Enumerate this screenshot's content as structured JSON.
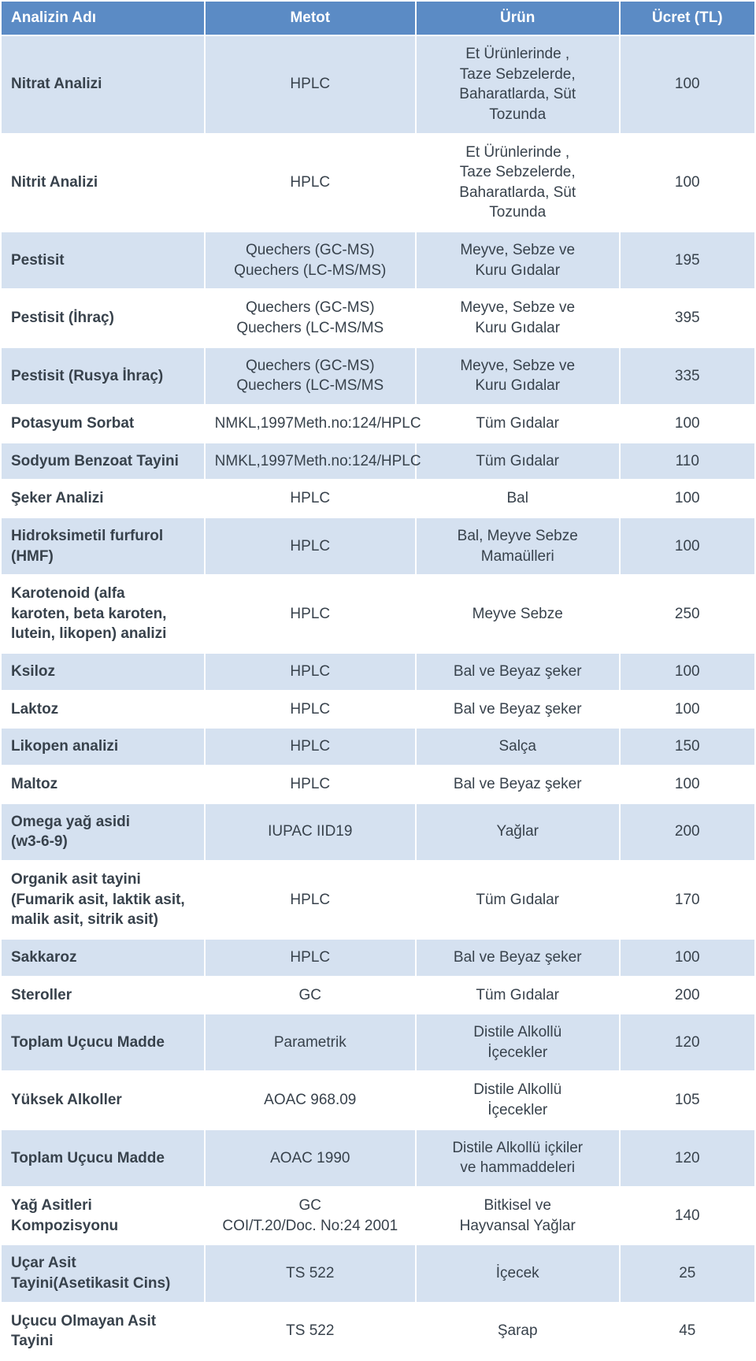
{
  "table": {
    "header_bg": "#5b8bc5",
    "row_alt_bg": "#d5e1f0",
    "row_bg": "#ffffff",
    "text_color": "#38424c",
    "header_text_color": "#ffffff",
    "columns": [
      {
        "key": "name",
        "label": "Analizin Adı",
        "align": "left"
      },
      {
        "key": "method",
        "label": "Metot",
        "align": "center"
      },
      {
        "key": "product",
        "label": "Ürün",
        "align": "center"
      },
      {
        "key": "price",
        "label": "Ücret (TL)",
        "align": "center"
      }
    ],
    "rows": [
      {
        "name": "Nitrat Analizi",
        "method": "HPLC",
        "product": "Et Ürünlerinde ,\nTaze Sebzelerde,\nBaharatlarda, Süt\nTozunda",
        "price": "100",
        "alt": true
      },
      {
        "name": "Nitrit Analizi",
        "method": "HPLC",
        "product": "Et Ürünlerinde ,\nTaze Sebzelerde,\nBaharatlarda, Süt\nTozunda",
        "price": "100",
        "alt": false
      },
      {
        "name": "Pestisit",
        "method": "Quechers (GC-MS)\nQuechers (LC-MS/MS)",
        "product": "Meyve, Sebze ve\nKuru Gıdalar",
        "price": "195",
        "alt": true
      },
      {
        "name": "Pestisit (İhraç)",
        "method": "Quechers (GC-MS)\nQuechers (LC-MS/MS",
        "product": "Meyve, Sebze ve\nKuru Gıdalar",
        "price": "395",
        "alt": false
      },
      {
        "name": "Pestisit (Rusya İhraç)",
        "method": "Quechers (GC-MS)\nQuechers (LC-MS/MS",
        "product": "Meyve, Sebze ve\nKuru Gıdalar",
        "price": "335",
        "alt": true
      },
      {
        "name": "Potasyum Sorbat",
        "method": "NMKL,1997Meth.no:124/HPLC",
        "product": "Tüm Gıdalar",
        "price": "100",
        "alt": false
      },
      {
        "name": "Sodyum Benzoat Tayini",
        "method": "NMKL,1997Meth.no:124/HPLC",
        "product": "Tüm Gıdalar",
        "price": "110",
        "alt": true
      },
      {
        "name": "Şeker Analizi",
        "method": "HPLC",
        "product": "Bal",
        "price": "100",
        "alt": false
      },
      {
        "name": "Hidroksimetil furfurol\n(HMF)",
        "method": "HPLC",
        "product": "Bal, Meyve Sebze\nMamaülleri",
        "price": "100",
        "alt": true
      },
      {
        "name": "Karotenoid (alfa\nkaroten, beta karoten,\nlutein, likopen) analizi",
        "method": "HPLC",
        "product": "Meyve Sebze",
        "price": "250",
        "alt": false
      },
      {
        "name": "Ksiloz",
        "method": "HPLC",
        "product": "Bal ve Beyaz şeker",
        "price": "100",
        "alt": true
      },
      {
        "name": "Laktoz",
        "method": "HPLC",
        "product": "Bal ve Beyaz şeker",
        "price": "100",
        "alt": false
      },
      {
        "name": "Likopen analizi",
        "method": "HPLC",
        "product": "Salça",
        "price": "150",
        "alt": true
      },
      {
        "name": "Maltoz",
        "method": "HPLC",
        "product": "Bal ve Beyaz şeker",
        "price": "100",
        "alt": false
      },
      {
        "name": "Omega yağ asidi\n(w3-6-9)",
        "method": "IUPAC IID19",
        "product": "Yağlar",
        "price": "200",
        "alt": true
      },
      {
        "name": "Organik asit tayini\n(Fumarik asit, laktik asit,\nmalik asit, sitrik asit)",
        "method": "HPLC",
        "product": "Tüm Gıdalar",
        "price": "170",
        "alt": false
      },
      {
        "name": "Sakkaroz",
        "method": "HPLC",
        "product": "Bal ve Beyaz şeker",
        "price": "100",
        "alt": true
      },
      {
        "name": "Steroller",
        "method": "GC",
        "product": "Tüm Gıdalar",
        "price": "200",
        "alt": false
      },
      {
        "name": "Toplam Uçucu Madde",
        "method": "Parametrik",
        "product": "Distile Alkollü\nİçecekler",
        "price": "120",
        "alt": true
      },
      {
        "name": "Yüksek Alkoller",
        "method": "AOAC 968.09",
        "product": "Distile Alkollü\nİçecekler",
        "price": "105",
        "alt": false
      },
      {
        "name": "Toplam Uçucu Madde",
        "method": "AOAC 1990",
        "product": "Distile Alkollü içkiler\nve hammaddeleri",
        "price": "120",
        "alt": true
      },
      {
        "name": "Yağ Asitleri\nKompozisyonu",
        "method": "GC\nCOI/T.20/Doc. No:24 2001",
        "product": "Bitkisel ve\nHayvansal Yağlar",
        "price": "140",
        "alt": false
      },
      {
        "name": "Uçar Asit\nTayini(Asetikasit Cins)",
        "method": "TS 522",
        "product": "İçecek",
        "price": "25",
        "alt": true
      },
      {
        "name": "Uçucu Olmayan Asit\nTayini",
        "method": "TS 522",
        "product": "Şarap",
        "price": "45",
        "alt": false
      }
    ]
  }
}
